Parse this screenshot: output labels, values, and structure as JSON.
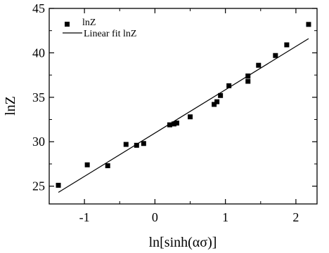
{
  "chart_data": {
    "type": "scatter",
    "title": "",
    "xlabel": "ln[sinh(ασ)]",
    "ylabel": "lnZ",
    "xlim": [
      -1.5,
      2.3
    ],
    "ylim": [
      23,
      45
    ],
    "x_ticks": [
      -1,
      0,
      1,
      2
    ],
    "y_ticks": [
      25,
      30,
      35,
      40,
      45
    ],
    "x_tick_labels": [
      "-1",
      "0",
      "1",
      "2"
    ],
    "y_tick_labels": [
      "25",
      "30",
      "35",
      "40",
      "45"
    ],
    "grid": false,
    "legend_position": "top-left",
    "series": [
      {
        "name": "lnZ",
        "marker": "square",
        "color": "#000000",
        "points": [
          {
            "x": -1.37,
            "y": 25.1
          },
          {
            "x": -0.96,
            "y": 27.4
          },
          {
            "x": -0.67,
            "y": 27.3
          },
          {
            "x": -0.41,
            "y": 29.7
          },
          {
            "x": -0.26,
            "y": 29.6
          },
          {
            "x": -0.16,
            "y": 29.8
          },
          {
            "x": 0.21,
            "y": 31.9
          },
          {
            "x": 0.27,
            "y": 32.0
          },
          {
            "x": 0.31,
            "y": 32.1
          },
          {
            "x": 0.5,
            "y": 32.8
          },
          {
            "x": 0.84,
            "y": 34.2
          },
          {
            "x": 0.88,
            "y": 34.5
          },
          {
            "x": 0.93,
            "y": 35.2
          },
          {
            "x": 1.05,
            "y": 36.3
          },
          {
            "x": 1.32,
            "y": 36.8
          },
          {
            "x": 1.32,
            "y": 37.4
          },
          {
            "x": 1.47,
            "y": 38.6
          },
          {
            "x": 1.71,
            "y": 39.7
          },
          {
            "x": 1.87,
            "y": 40.9
          },
          {
            "x": 2.18,
            "y": 43.2
          }
        ]
      },
      {
        "name": "Linear fit lnZ",
        "type": "line",
        "color": "#000000",
        "points": [
          {
            "x": -1.37,
            "y": 24.3
          },
          {
            "x": 2.18,
            "y": 41.6
          }
        ]
      }
    ]
  }
}
